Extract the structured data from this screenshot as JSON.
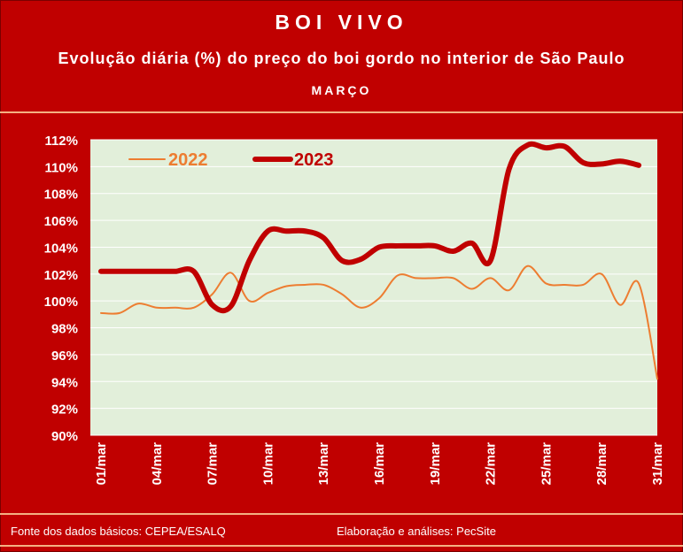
{
  "header": {
    "title": "BOI VIVO",
    "subtitle": "Evolução diária (%) do preço do boi gordo no interior de São Paulo",
    "month": "MARÇO"
  },
  "footer": {
    "source": "Fonte dos dados básicos: CEPEA/ESALQ",
    "credits": "Elaboração e análises: PecSite"
  },
  "colors": {
    "background": "#c00000",
    "plot_background": "#e2efda",
    "series_2022": "#ed7d31",
    "series_2023": "#c00000",
    "accent_rule": "#f4b183"
  },
  "chart_data": {
    "type": "line",
    "title": "",
    "xlabel": "",
    "ylabel": "",
    "ylim": [
      90,
      112
    ],
    "y_ticks": [
      "90%",
      "92%",
      "94%",
      "96%",
      "98%",
      "100%",
      "102%",
      "104%",
      "106%",
      "108%",
      "110%",
      "112%"
    ],
    "x_tick_labels": [
      "01/mar",
      "04/mar",
      "07/mar",
      "10/mar",
      "13/mar",
      "16/mar",
      "19/mar",
      "22/mar",
      "25/mar",
      "28/mar",
      "31/mar"
    ],
    "grid": true,
    "legend_position": "top-left",
    "series": [
      {
        "name": "2022",
        "line": "thin",
        "points": [
          [
            1,
            99.1
          ],
          [
            2,
            99.1
          ],
          [
            3,
            99.8
          ],
          [
            4,
            99.5
          ],
          [
            5,
            99.5
          ],
          [
            6,
            99.5
          ],
          [
            7,
            100.5
          ],
          [
            8,
            102.1
          ],
          [
            9,
            100.0
          ],
          [
            10,
            100.6
          ],
          [
            11,
            101.1
          ],
          [
            12,
            101.2
          ],
          [
            13,
            101.2
          ],
          [
            14,
            100.5
          ],
          [
            15,
            99.5
          ],
          [
            16,
            100.2
          ],
          [
            17,
            101.9
          ],
          [
            18,
            101.7
          ],
          [
            19,
            101.7
          ],
          [
            20,
            101.7
          ],
          [
            21,
            100.9
          ],
          [
            22,
            101.7
          ],
          [
            23,
            100.8
          ],
          [
            24,
            102.6
          ],
          [
            25,
            101.3
          ],
          [
            26,
            101.2
          ],
          [
            27,
            101.2
          ],
          [
            28,
            102.0
          ],
          [
            29,
            99.7
          ],
          [
            30,
            101.3
          ],
          [
            31,
            94.2
          ]
        ]
      },
      {
        "name": "2023",
        "line": "thick",
        "points": [
          [
            1,
            102.2
          ],
          [
            2,
            102.2
          ],
          [
            3,
            102.2
          ],
          [
            4,
            102.2
          ],
          [
            5,
            102.2
          ],
          [
            6,
            102.2
          ],
          [
            7,
            99.7
          ],
          [
            8,
            99.6
          ],
          [
            9,
            103.0
          ],
          [
            10,
            105.2
          ],
          [
            11,
            105.2
          ],
          [
            12,
            105.2
          ],
          [
            13,
            104.7
          ],
          [
            14,
            103.0
          ],
          [
            15,
            103.1
          ],
          [
            16,
            104.0
          ],
          [
            17,
            104.1
          ],
          [
            18,
            104.1
          ],
          [
            19,
            104.1
          ],
          [
            20,
            103.7
          ],
          [
            21,
            104.3
          ],
          [
            22,
            103.0
          ],
          [
            23,
            109.8
          ],
          [
            24,
            111.6
          ],
          [
            25,
            111.4
          ],
          [
            26,
            111.5
          ],
          [
            27,
            110.3
          ],
          [
            28,
            110.2
          ],
          [
            29,
            110.4
          ],
          [
            30,
            110.1
          ]
        ]
      }
    ]
  }
}
